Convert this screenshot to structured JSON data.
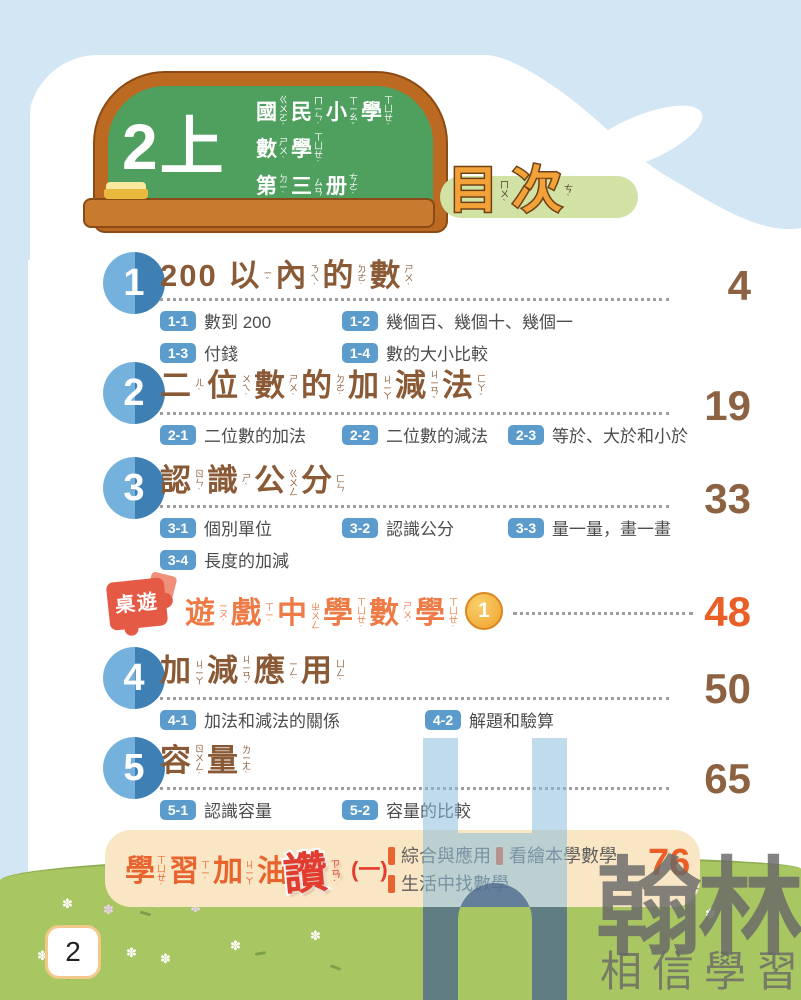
{
  "board": {
    "grade": "2上",
    "lines": [
      {
        "chars": [
          {
            "c": "國",
            "z": "ㄍㄨㄛˊ"
          },
          {
            "c": "民",
            "z": "ㄇㄧㄣˊ"
          },
          {
            "c": "小",
            "z": "ㄒㄧㄠˇ"
          },
          {
            "c": "學",
            "z": "ㄒㄩㄝˊ"
          }
        ]
      },
      {
        "chars": [
          {
            "c": "數",
            "z": "ㄕㄨˋ"
          },
          {
            "c": "學",
            "z": "ㄒㄩㄝˊ"
          }
        ]
      },
      {
        "chars": [
          {
            "c": "第",
            "z": "ㄉㄧˋ"
          },
          {
            "c": "三",
            "z": "ㄙㄢ"
          },
          {
            "c": "册",
            "z": "ㄘㄜˋ"
          }
        ]
      }
    ]
  },
  "toc_title": {
    "chars": [
      {
        "c": "目",
        "z": "ㄇㄨˋ"
      },
      {
        "c": "次",
        "z": "ㄘˋ"
      }
    ]
  },
  "chapters": [
    {
      "num": "1",
      "title": {
        "prefix": "200 ",
        "chars": [
          {
            "c": "以",
            "z": "ㄧˇ"
          },
          {
            "c": "內",
            "z": "ㄋㄟˋ"
          },
          {
            "c": "的",
            "z": "ㄉㄜ˙"
          },
          {
            "c": "數",
            "z": "ㄕㄨˋ"
          }
        ]
      },
      "page": "4",
      "subs": [
        {
          "code": "1-1",
          "label": "數到 200"
        },
        {
          "code": "1-2",
          "label": "幾個百、幾個十、幾個一"
        },
        {
          "code": "1-3",
          "label": "付錢"
        },
        {
          "code": "1-4",
          "label": "數的大小比較"
        }
      ]
    },
    {
      "num": "2",
      "title": {
        "prefix": "",
        "chars": [
          {
            "c": "二",
            "z": "ㄦˋ"
          },
          {
            "c": "位",
            "z": "ㄨㄟˋ"
          },
          {
            "c": "數",
            "z": "ㄕㄨˋ"
          },
          {
            "c": "的",
            "z": "ㄉㄜ˙"
          },
          {
            "c": "加",
            "z": "ㄐㄧㄚ"
          },
          {
            "c": "減",
            "z": "ㄐㄧㄢˇ"
          },
          {
            "c": "法",
            "z": "ㄈㄚˇ"
          }
        ]
      },
      "page": "19",
      "subs": [
        {
          "code": "2-1",
          "label": "二位數的加法"
        },
        {
          "code": "2-2",
          "label": "二位數的減法"
        },
        {
          "code": "2-3",
          "label": "等於、大於和小於"
        }
      ]
    },
    {
      "num": "3",
      "title": {
        "prefix": "",
        "chars": [
          {
            "c": "認",
            "z": "ㄖㄣˋ"
          },
          {
            "c": "識",
            "z": "ㄕˋ"
          },
          {
            "c": "公",
            "z": "ㄍㄨㄥ"
          },
          {
            "c": "分",
            "z": "ㄈㄣ"
          }
        ]
      },
      "page": "33",
      "subs": [
        {
          "code": "3-1",
          "label": "個別單位"
        },
        {
          "code": "3-2",
          "label": "認識公分"
        },
        {
          "code": "3-3",
          "label": "量一量，畫一畫"
        },
        {
          "code": "3-4",
          "label": "長度的加減"
        }
      ]
    },
    {
      "num": "4",
      "title": {
        "prefix": "",
        "chars": [
          {
            "c": "加",
            "z": "ㄐㄧㄚ"
          },
          {
            "c": "減",
            "z": "ㄐㄧㄢˇ"
          },
          {
            "c": "應",
            "z": "ㄧㄥˋ"
          },
          {
            "c": "用",
            "z": "ㄩㄥˋ"
          }
        ]
      },
      "page": "50",
      "subs": [
        {
          "code": "4-1",
          "label": "加法和減法的關係"
        },
        {
          "code": "4-2",
          "label": "解題和驗算"
        }
      ]
    },
    {
      "num": "5",
      "title": {
        "prefix": "",
        "chars": [
          {
            "c": "容",
            "z": "ㄖㄨㄥˊ"
          },
          {
            "c": "量",
            "z": "ㄌㄧㄤˋ"
          }
        ]
      },
      "page": "65",
      "subs": [
        {
          "code": "5-1",
          "label": "認識容量"
        },
        {
          "code": "5-2",
          "label": "容量的比較"
        }
      ]
    }
  ],
  "game_row": {
    "puzzle_label": "桌遊",
    "title": {
      "prefix": "",
      "chars": [
        {
          "c": "遊",
          "z": "ㄧㄡˊ"
        },
        {
          "c": "戲",
          "z": "ㄒㄧˋ"
        },
        {
          "c": "中",
          "z": "ㄓㄨㄥ"
        },
        {
          "c": "學",
          "z": "ㄒㄩㄝˊ"
        },
        {
          "c": "數",
          "z": "ㄕㄨˋ"
        },
        {
          "c": "學",
          "z": "ㄒㄩㄝˊ"
        }
      ]
    },
    "seq": "1",
    "page": "48"
  },
  "footer": {
    "title": {
      "chars": [
        {
          "c": "學",
          "z": "ㄒㄩㄝˊ"
        },
        {
          "c": "習",
          "z": "ㄒㄧˊ"
        },
        {
          "c": "加",
          "z": "ㄐㄧㄚ"
        },
        {
          "c": "油",
          "z": "ㄧㄡˊ"
        }
      ]
    },
    "zan": {
      "chars": [
        {
          "c": "讚",
          "z": "ㄗㄢˋ"
        }
      ]
    },
    "suffix": "(一)",
    "legend": [
      "綜合與應用",
      "生活中找數學",
      "看繪本學數學"
    ],
    "page": "76"
  },
  "watermark": {
    "logo": "翰林",
    "slogan": "相信學習",
    "letter": "H"
  },
  "page_number": "2",
  "colors": {
    "sky": "#d3e6f4",
    "grass": "#a8c662",
    "board_green": "#4f9f5f",
    "board_wood": "#bc6a22",
    "chapter_brown": "#8a5a36",
    "accent_orange": "#ea5f28",
    "badge_blue": "#5b9ccc",
    "circle_light": "#74b2dd",
    "circle_dark": "#3f80b4",
    "footer_cream": "#f9e6c4",
    "toc_orange": "#f2a238",
    "puzzle_red": "#e55a45",
    "watermark_gray": "#686868",
    "watermark_blue": "#8cbedc"
  }
}
